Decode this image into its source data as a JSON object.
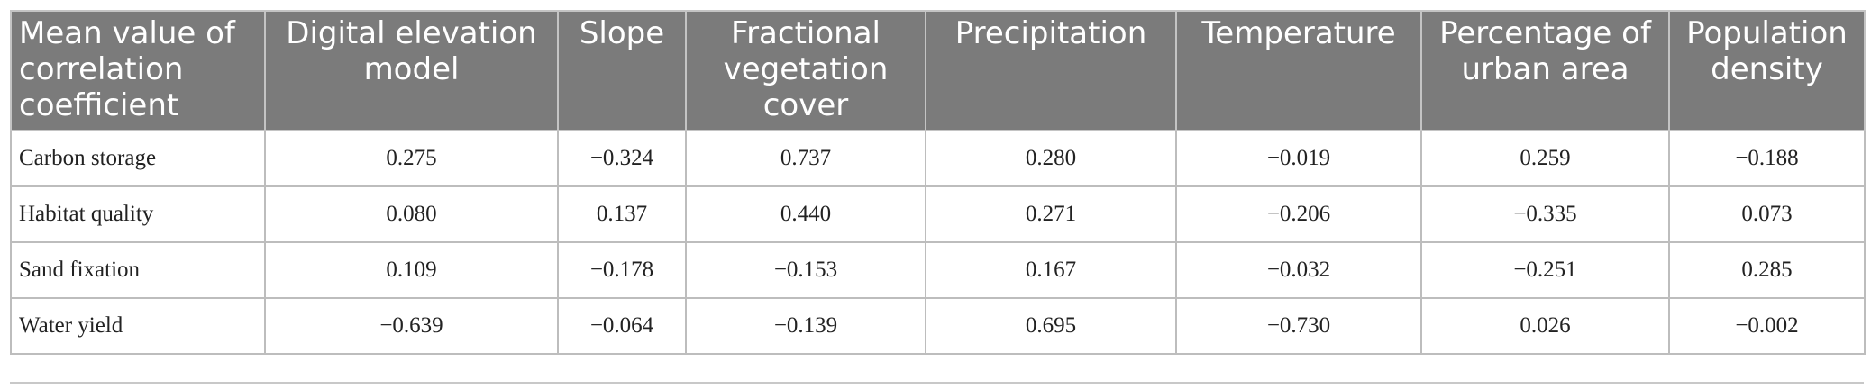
{
  "table": {
    "header": [
      "Mean value of correlation coefficient",
      "Digital elevation model",
      "Slope",
      "Fractional vegetation cover",
      "Precipitation",
      "Temperature",
      "Percentage of urban area",
      "Population density"
    ],
    "rows": [
      [
        "Carbon storage",
        "0.275",
        "−0.324",
        "0.737",
        "0.280",
        "−0.019",
        "0.259",
        "−0.188"
      ],
      [
        "Habitat quality",
        "0.080",
        "0.137",
        "0.440",
        "0.271",
        "−0.206",
        "−0.335",
        "0.073"
      ],
      [
        "Sand fixation",
        "0.109",
        "−0.178",
        "−0.153",
        "0.167",
        "−0.032",
        "−0.251",
        "0.285"
      ],
      [
        "Water yield",
        "−0.639",
        "−0.064",
        "−0.139",
        "0.695",
        "−0.730",
        "0.026",
        "−0.002"
      ]
    ]
  }
}
